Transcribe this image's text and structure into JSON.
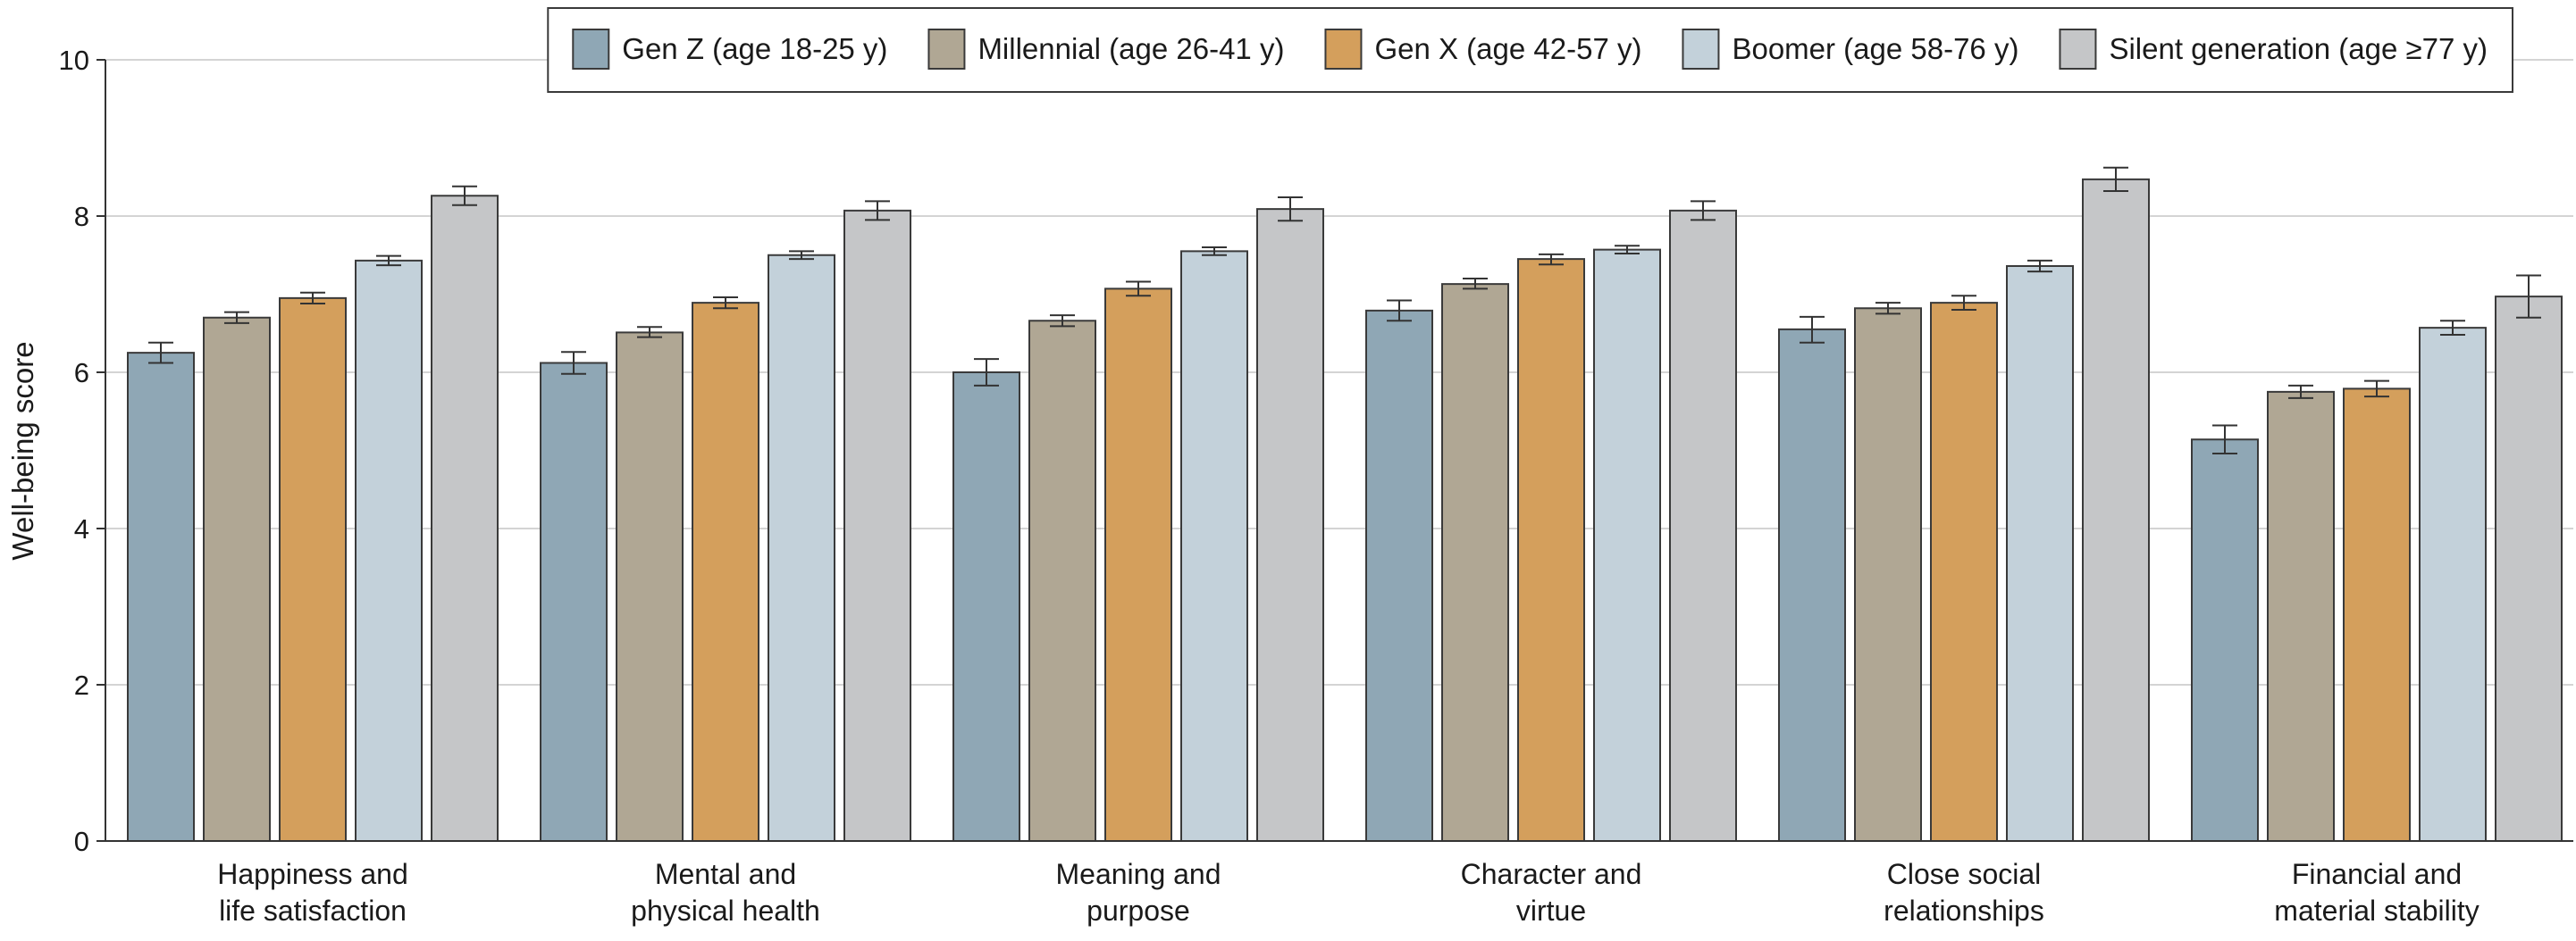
{
  "chart_data": {
    "type": "bar",
    "ylabel": "Well-being score",
    "ylim": [
      0,
      10
    ],
    "yticks": [
      0,
      2,
      4,
      6,
      8,
      10
    ],
    "grid": "horizontal",
    "legend_position": "top-right",
    "error_bars": true,
    "categories": [
      [
        "Happiness and",
        "life satisfaction"
      ],
      [
        "Mental and",
        "physical health"
      ],
      [
        "Meaning and",
        "purpose"
      ],
      [
        "Character and",
        "virtue"
      ],
      [
        "Close social",
        "relationships"
      ],
      [
        "Financial and",
        "material stability"
      ]
    ],
    "series": [
      {
        "name": "Gen Z (age 18-25 y)",
        "color": "#8fa7b5",
        "values": [
          6.25,
          6.12,
          6.0,
          6.79,
          6.55,
          5.14
        ],
        "err_low": [
          6.12,
          5.98,
          5.83,
          6.66,
          6.38,
          4.96
        ],
        "err_high": [
          6.38,
          6.26,
          6.17,
          6.92,
          6.71,
          5.32
        ]
      },
      {
        "name": "Millennial (age 26-41 y)",
        "color": "#b0a794",
        "values": [
          6.7,
          6.51,
          6.66,
          7.13,
          6.82,
          5.75
        ],
        "err_low": [
          6.63,
          6.45,
          6.59,
          7.07,
          6.75,
          5.67
        ],
        "err_high": [
          6.77,
          6.58,
          6.73,
          7.2,
          6.89,
          5.83
        ]
      },
      {
        "name": "Gen X (age 42-57 y)",
        "color": "#d49f5c",
        "values": [
          6.95,
          6.89,
          7.07,
          7.45,
          6.89,
          5.79
        ],
        "err_low": [
          6.88,
          6.82,
          6.98,
          7.38,
          6.8,
          5.69
        ],
        "err_high": [
          7.02,
          6.96,
          7.16,
          7.51,
          6.98,
          5.89
        ]
      },
      {
        "name": "Boomer (age 58-76 y)",
        "color": "#c3d1da",
        "values": [
          7.43,
          7.5,
          7.55,
          7.57,
          7.36,
          6.57
        ],
        "err_low": [
          7.37,
          7.45,
          7.5,
          7.52,
          7.29,
          6.48
        ],
        "err_high": [
          7.49,
          7.55,
          7.6,
          7.62,
          7.43,
          6.66
        ]
      },
      {
        "name": "Silent generation (age ≥77 y)",
        "color": "#c5c6c8",
        "values": [
          8.26,
          8.07,
          8.09,
          8.07,
          8.47,
          6.97
        ],
        "err_low": [
          8.14,
          7.95,
          7.94,
          7.95,
          8.32,
          6.7
        ],
        "err_high": [
          8.38,
          8.19,
          8.24,
          8.19,
          8.62,
          7.24
        ]
      }
    ]
  }
}
